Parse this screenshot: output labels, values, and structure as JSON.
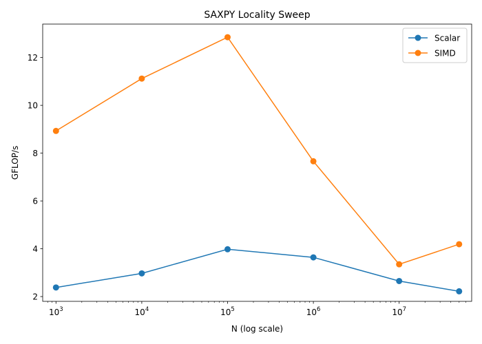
{
  "chart_data": {
    "type": "line",
    "title": "SAXPY Locality Sweep",
    "xlabel": "N (log scale)",
    "ylabel": "GFLOP/s",
    "xscale": "log",
    "xlim": [
      700,
      70000000
    ],
    "ylim": [
      1.8,
      13.4
    ],
    "x": [
      1000,
      10000,
      100000,
      1000000,
      10000000,
      50000000
    ],
    "x_ticks": [
      {
        "value": 1000,
        "base": "10",
        "exp": "3"
      },
      {
        "value": 10000,
        "base": "10",
        "exp": "4"
      },
      {
        "value": 100000,
        "base": "10",
        "exp": "5"
      },
      {
        "value": 1000000,
        "base": "10",
        "exp": "6"
      },
      {
        "value": 10000000,
        "base": "10",
        "exp": "7"
      }
    ],
    "y_ticks": [
      {
        "value": 2,
        "label": "2"
      },
      {
        "value": 4,
        "label": "4"
      },
      {
        "value": 6,
        "label": "6"
      },
      {
        "value": 8,
        "label": "8"
      },
      {
        "value": 10,
        "label": "10"
      },
      {
        "value": 12,
        "label": "12"
      }
    ],
    "series": [
      {
        "name": "Scalar",
        "color": "#1f77b4",
        "values": [
          2.38,
          2.97,
          3.98,
          3.64,
          2.65,
          2.22
        ]
      },
      {
        "name": "SIMD",
        "color": "#ff7f0e",
        "values": [
          8.93,
          11.12,
          12.85,
          7.66,
          3.35,
          4.19
        ]
      }
    ],
    "legend_position": "top-right",
    "grid": false
  }
}
